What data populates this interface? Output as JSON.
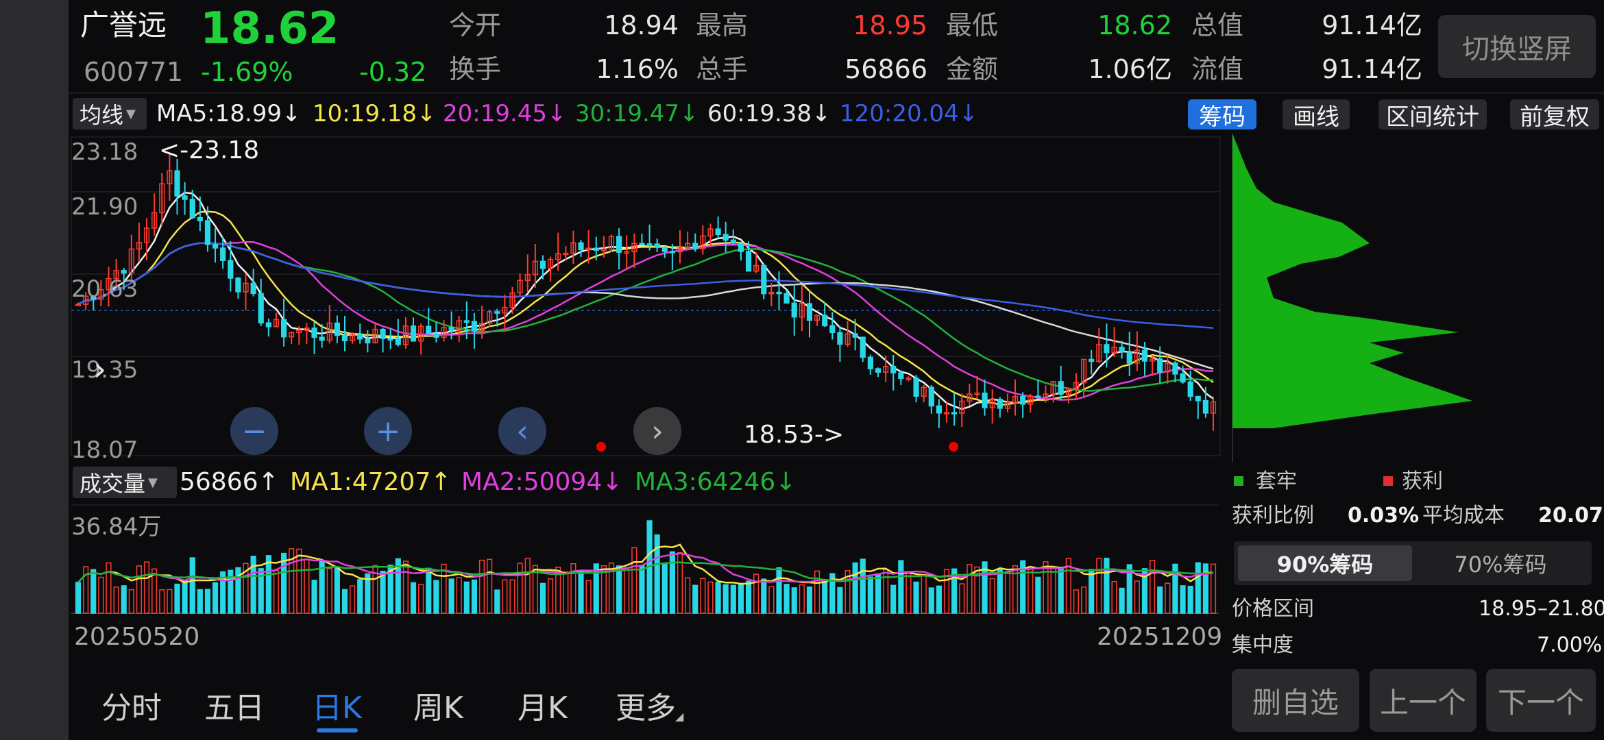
{
  "stock": {
    "name": "广誉远",
    "code": "600771",
    "price": "18.62",
    "change_pct": "-1.69%",
    "change": "-0.32",
    "stats": [
      {
        "label": "今开",
        "value": "18.94",
        "color": "#e6e6e6"
      },
      {
        "label": "最高",
        "value": "18.95",
        "color": "#ff3b30"
      },
      {
        "label": "最低",
        "value": "18.62",
        "color": "#1fd23a"
      },
      {
        "label": "总值",
        "value": "91.14亿",
        "color": "#e6e6e6"
      },
      {
        "label": "换手",
        "value": "1.16%",
        "color": "#e6e6e6"
      },
      {
        "label": "总手",
        "value": "56866",
        "color": "#e6e6e6"
      },
      {
        "label": "金额",
        "value": "1.06亿",
        "color": "#e6e6e6"
      },
      {
        "label": "流值",
        "value": "91.14亿",
        "color": "#e6e6e6"
      }
    ],
    "switch_button": "切换竖屏"
  },
  "ma_bar": {
    "dropdown": "均线",
    "items": [
      {
        "text": "MA5:18.99↓",
        "color": "#f0f0f0"
      },
      {
        "text": "10:19.18↓",
        "color": "#f5e44a"
      },
      {
        "text": "20:19.45↓",
        "color": "#e040e0"
      },
      {
        "text": "30:19.47↓",
        "color": "#22b23a"
      },
      {
        "text": "60:19.38↓",
        "color": "#e8e8e8"
      },
      {
        "text": "120:20.04↓",
        "color": "#3a5ee8"
      }
    ],
    "buttons": [
      "筹码",
      "画线",
      "区间统计",
      "前复权"
    ]
  },
  "chart": {
    "y_ticks": [
      "23.18",
      "21.90",
      "20.63",
      "19.35",
      "18.07"
    ],
    "max_label": "<-23.18",
    "min_label": "18.53->",
    "controls": [
      "zoom-out",
      "zoom-in",
      "prev",
      "next"
    ]
  },
  "volume": {
    "dropdown": "成交量",
    "items": [
      {
        "text": "56866↑",
        "color": "#f0f0f0"
      },
      {
        "text": "MA1:47207↑",
        "color": "#f5e44a"
      },
      {
        "text": "MA2:50094↓",
        "color": "#e040e0"
      },
      {
        "text": "MA3:64246↓",
        "color": "#22b23a"
      }
    ],
    "max_label": "36.84万",
    "start_date": "20250520",
    "end_date": "20251209"
  },
  "chips": {
    "legend": [
      {
        "label": "套牢",
        "color": "#22b022"
      },
      {
        "label": "获利",
        "color": "#e03030"
      }
    ],
    "profit_ratio_label": "获利比例",
    "profit_ratio": "0.03%",
    "avg_cost_label": "平均成本",
    "avg_cost": "20.07",
    "tabs": [
      "90%筹码",
      "70%筹码"
    ],
    "price_range_label": "价格区间",
    "price_range": "18.95–21.80",
    "concentration_label": "集中度",
    "concentration": "7.00%"
  },
  "bottom_tabs": [
    "分时",
    "五日",
    "日K",
    "周K",
    "月K",
    "更多"
  ],
  "bottom_buttons": [
    "删自选",
    "上一个",
    "下一个"
  ],
  "colors": {
    "up": "#ff3b30",
    "down": "#1fd23a",
    "accent": "#1f6fdc",
    "candle_down": "#28d7e6"
  }
}
